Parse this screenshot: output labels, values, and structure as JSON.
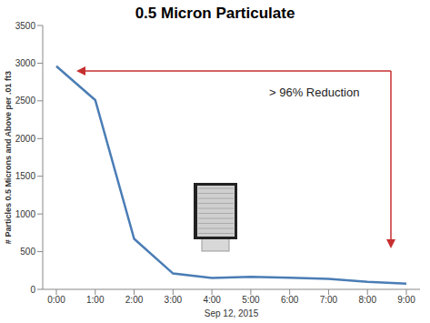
{
  "chart_data": {
    "type": "line",
    "title": "0.5 Micron Particulate",
    "x_label": "Sep 12, 2015",
    "y_label": "# Particles 0.5 Microns and Above per .01 ft3",
    "categories": [
      "0:00",
      "1:00",
      "2:00",
      "3:00",
      "4:00",
      "5:00",
      "6:00",
      "7:00",
      "8:00",
      "9:00"
    ],
    "values": [
      2960,
      2510,
      670,
      210,
      150,
      165,
      155,
      140,
      100,
      75
    ],
    "color": "#4a7db5",
    "ylim": [
      0,
      3500
    ],
    "yticks": [
      0,
      500,
      1000,
      1500,
      2000,
      2500,
      3000,
      3500
    ],
    "grid": false,
    "annotation": "> 96% Reduction"
  }
}
